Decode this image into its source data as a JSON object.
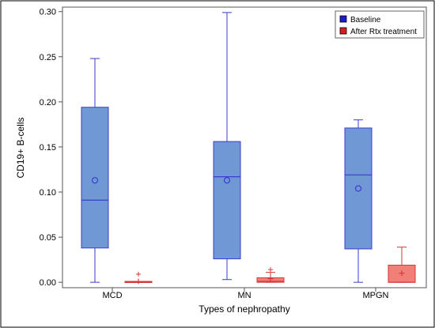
{
  "chart_data": {
    "type": "box",
    "title": "",
    "xlabel": "Types of nephropathy",
    "ylabel": "CD19+ B-cells",
    "categories": [
      "MCD",
      "MN",
      "MPGN"
    ],
    "ylim": [
      -0.006,
      0.305
    ],
    "yticks": [
      "0.00",
      "0.05",
      "0.10",
      "0.15",
      "0.20",
      "0.25",
      "0.30"
    ],
    "legend": {
      "placement": "top-right"
    },
    "series": [
      {
        "name": "Baseline",
        "fill": "#6f98d4",
        "stroke": "#3c3ccf",
        "boxes": [
          {
            "min": 0.0,
            "q1": 0.038,
            "median": 0.091,
            "q3": 0.194,
            "max": 0.248,
            "mean": 0.113
          },
          {
            "min": 0.003,
            "q1": 0.026,
            "median": 0.117,
            "q3": 0.156,
            "max": 0.299,
            "mean": 0.113
          },
          {
            "min": 0.0,
            "q1": 0.037,
            "median": 0.119,
            "q3": 0.171,
            "max": 0.18,
            "mean": 0.104
          }
        ]
      },
      {
        "name": "After Rtx treatment",
        "fill": "#f07f78",
        "stroke": "#d03a3a",
        "boxes": [
          {
            "min": 0.0,
            "q1": 0.0,
            "median": 0.0005,
            "q3": 0.001,
            "max": 0.001,
            "mean": 0.001,
            "outliers": [
              0.009
            ]
          },
          {
            "min": 0.0,
            "q1": 0.0,
            "median": 0.001,
            "q3": 0.005,
            "max": 0.011,
            "mean": 0.004,
            "outliers": [
              0.014
            ]
          },
          {
            "min": 0.0,
            "q1": 0.0,
            "median": 0.0,
            "q3": 0.019,
            "max": 0.039,
            "mean": 0.01
          }
        ]
      }
    ]
  }
}
